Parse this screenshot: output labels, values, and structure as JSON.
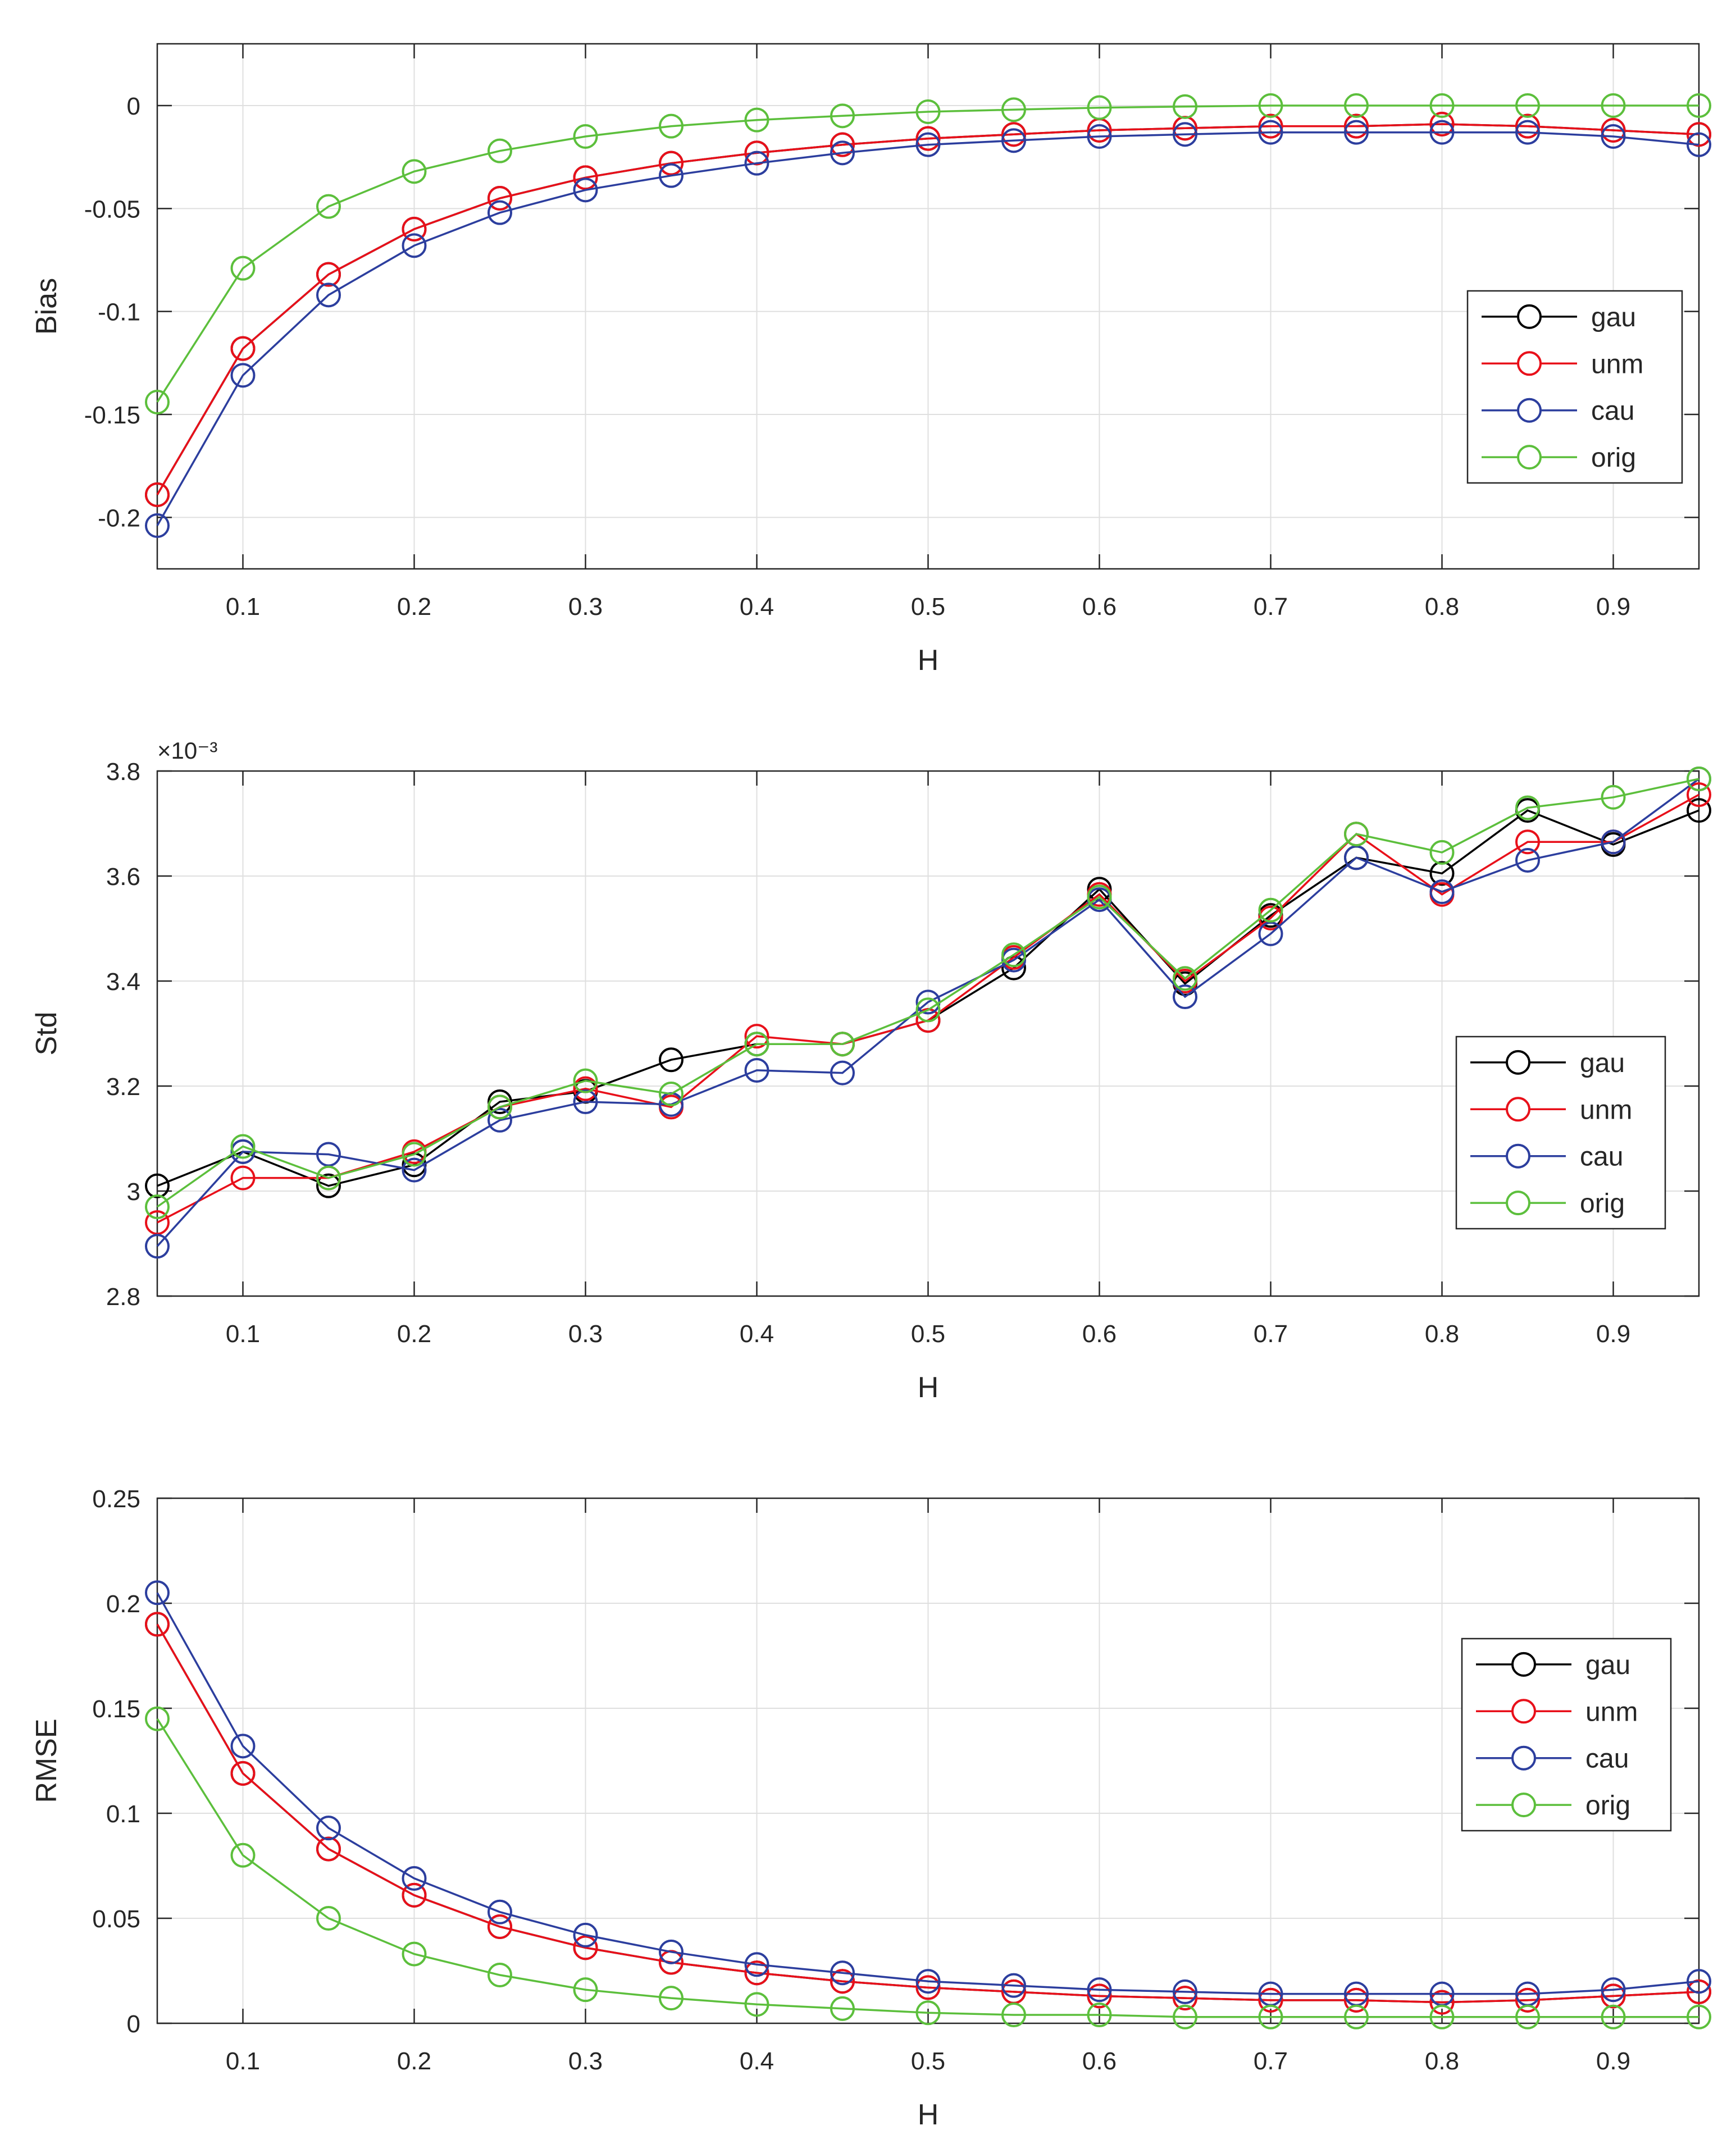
{
  "chart_data": [
    {
      "type": "line",
      "title": "",
      "xlabel": "H",
      "ylabel": "Bias",
      "xlim": [
        0.05,
        0.95
      ],
      "ylim": [
        -0.225,
        0.03
      ],
      "grid": true,
      "legend_position": "right",
      "x": [
        0.05,
        0.1,
        0.15,
        0.2,
        0.25,
        0.3,
        0.35,
        0.4,
        0.45,
        0.5,
        0.55,
        0.6,
        0.65,
        0.7,
        0.75,
        0.8,
        0.85,
        0.9,
        0.95
      ],
      "x_ticks": [
        0.1,
        0.2,
        0.3,
        0.4,
        0.5,
        0.6,
        0.7,
        0.8,
        0.9
      ],
      "x_tick_labels": [
        "0.1",
        "0.2",
        "0.3",
        "0.4",
        "0.5",
        "0.6",
        "0.7",
        "0.8",
        "0.9"
      ],
      "y_ticks": [
        0,
        -0.05,
        -0.1,
        -0.15,
        -0.2
      ],
      "y_tick_labels": [
        "0",
        "-0.05",
        "-0.1",
        "-0.15",
        "-0.2"
      ],
      "series": [
        {
          "name": "gau",
          "color": "#000000",
          "values": [
            -0.189,
            -0.118,
            -0.082,
            -0.06,
            -0.045,
            -0.035,
            -0.028,
            -0.023,
            -0.019,
            -0.016,
            -0.014,
            -0.012,
            -0.011,
            -0.01,
            -0.01,
            -0.009,
            -0.01,
            -0.012,
            -0.014
          ]
        },
        {
          "name": "unm",
          "color": "#e8101a",
          "values": [
            -0.189,
            -0.118,
            -0.082,
            -0.06,
            -0.045,
            -0.035,
            -0.028,
            -0.023,
            -0.019,
            -0.016,
            -0.014,
            -0.012,
            -0.011,
            -0.01,
            -0.01,
            -0.009,
            -0.01,
            -0.012,
            -0.014
          ]
        },
        {
          "name": "cau",
          "color": "#2c3e9e",
          "values": [
            -0.204,
            -0.131,
            -0.092,
            -0.068,
            -0.052,
            -0.041,
            -0.034,
            -0.028,
            -0.023,
            -0.019,
            -0.017,
            -0.015,
            -0.014,
            -0.013,
            -0.013,
            -0.013,
            -0.013,
            -0.015,
            -0.019
          ]
        },
        {
          "name": "orig",
          "color": "#5cbf3c",
          "values": [
            -0.144,
            -0.079,
            -0.049,
            -0.032,
            -0.022,
            -0.015,
            -0.01,
            -0.007,
            -0.005,
            -0.003,
            -0.002,
            -0.001,
            -0.0005,
            0.0,
            0.0,
            0.0,
            0.0,
            0.0,
            0.0
          ]
        }
      ]
    },
    {
      "type": "line",
      "title": "",
      "xlabel": "H",
      "ylabel": "Std",
      "y_exponent_label": "×10⁻³",
      "xlim": [
        0.05,
        0.95
      ],
      "ylim": [
        2.8,
        3.8
      ],
      "grid": true,
      "legend_position": "right",
      "x": [
        0.05,
        0.1,
        0.15,
        0.2,
        0.25,
        0.3,
        0.35,
        0.4,
        0.45,
        0.5,
        0.55,
        0.6,
        0.65,
        0.7,
        0.75,
        0.8,
        0.85,
        0.9,
        0.95
      ],
      "x_ticks": [
        0.1,
        0.2,
        0.3,
        0.4,
        0.5,
        0.6,
        0.7,
        0.8,
        0.9
      ],
      "x_tick_labels": [
        "0.1",
        "0.2",
        "0.3",
        "0.4",
        "0.5",
        "0.6",
        "0.7",
        "0.8",
        "0.9"
      ],
      "y_ticks": [
        2.8,
        3.0,
        3.2,
        3.4,
        3.6,
        3.8
      ],
      "y_tick_labels": [
        "2.8",
        "3",
        "3.2",
        "3.4",
        "3.6",
        "3.8"
      ],
      "series": [
        {
          "name": "gau",
          "color": "#000000",
          "values": [
            3.01,
            3.075,
            3.01,
            3.05,
            3.17,
            3.19,
            3.25,
            3.28,
            3.28,
            3.325,
            3.425,
            3.575,
            3.395,
            3.525,
            3.635,
            3.605,
            3.725,
            3.66,
            3.725
          ]
        },
        {
          "name": "unm",
          "color": "#e8101a",
          "values": [
            2.94,
            3.025,
            3.025,
            3.075,
            3.16,
            3.195,
            3.16,
            3.295,
            3.28,
            3.325,
            3.445,
            3.565,
            3.4,
            3.52,
            3.68,
            3.565,
            3.665,
            3.665,
            3.755
          ]
        },
        {
          "name": "cau",
          "color": "#2c3e9e",
          "values": [
            2.895,
            3.075,
            3.07,
            3.04,
            3.135,
            3.17,
            3.165,
            3.23,
            3.225,
            3.36,
            3.44,
            3.555,
            3.37,
            3.49,
            3.635,
            3.57,
            3.63,
            3.665,
            3.785
          ]
        },
        {
          "name": "orig",
          "color": "#5cbf3c",
          "values": [
            2.97,
            3.085,
            3.025,
            3.07,
            3.16,
            3.21,
            3.185,
            3.28,
            3.28,
            3.345,
            3.45,
            3.56,
            3.405,
            3.535,
            3.68,
            3.645,
            3.73,
            3.75,
            3.785
          ]
        }
      ]
    },
    {
      "type": "line",
      "title": "",
      "xlabel": "H",
      "ylabel": "RMSE",
      "xlim": [
        0.05,
        0.95
      ],
      "ylim": [
        0,
        0.25
      ],
      "grid": true,
      "legend_position": "right",
      "x": [
        0.05,
        0.1,
        0.15,
        0.2,
        0.25,
        0.3,
        0.35,
        0.4,
        0.45,
        0.5,
        0.55,
        0.6,
        0.65,
        0.7,
        0.75,
        0.8,
        0.85,
        0.9,
        0.95
      ],
      "x_ticks": [
        0.1,
        0.2,
        0.3,
        0.4,
        0.5,
        0.6,
        0.7,
        0.8,
        0.9
      ],
      "x_tick_labels": [
        "0.1",
        "0.2",
        "0.3",
        "0.4",
        "0.5",
        "0.6",
        "0.7",
        "0.8",
        "0.9"
      ],
      "y_ticks": [
        0,
        0.05,
        0.1,
        0.15,
        0.2,
        0.25
      ],
      "y_tick_labels": [
        "0",
        "0.05",
        "0.1",
        "0.15",
        "0.2",
        "0.25"
      ],
      "series": [
        {
          "name": "gau",
          "color": "#000000",
          "values": [
            0.19,
            0.119,
            0.083,
            0.061,
            0.046,
            0.036,
            0.029,
            0.024,
            0.02,
            0.017,
            0.015,
            0.013,
            0.012,
            0.011,
            0.011,
            0.01,
            0.011,
            0.013,
            0.015
          ]
        },
        {
          "name": "unm",
          "color": "#e8101a",
          "values": [
            0.19,
            0.119,
            0.083,
            0.061,
            0.046,
            0.036,
            0.029,
            0.024,
            0.02,
            0.017,
            0.015,
            0.013,
            0.012,
            0.011,
            0.011,
            0.01,
            0.011,
            0.013,
            0.015
          ]
        },
        {
          "name": "cau",
          "color": "#2c3e9e",
          "values": [
            0.205,
            0.132,
            0.093,
            0.069,
            0.053,
            0.042,
            0.034,
            0.028,
            0.024,
            0.02,
            0.018,
            0.016,
            0.015,
            0.014,
            0.014,
            0.014,
            0.014,
            0.016,
            0.02
          ]
        },
        {
          "name": "orig",
          "color": "#5cbf3c",
          "values": [
            0.145,
            0.08,
            0.05,
            0.033,
            0.023,
            0.016,
            0.012,
            0.009,
            0.007,
            0.005,
            0.004,
            0.004,
            0.003,
            0.003,
            0.003,
            0.003,
            0.003,
            0.003,
            0.003
          ]
        }
      ]
    }
  ]
}
